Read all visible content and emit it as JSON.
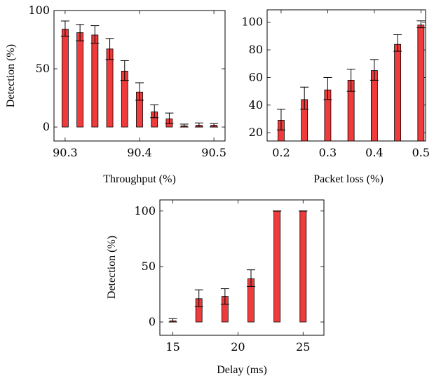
{
  "chart_data": [
    {
      "type": "bar",
      "xlabel": "Throughput (%)",
      "ylabel": "Detection (%)",
      "x": [
        90.3,
        90.32,
        90.34,
        90.36,
        90.38,
        90.4,
        90.42,
        90.44,
        90.46,
        90.48,
        90.5
      ],
      "values": [
        84,
        81,
        79,
        67,
        48,
        30,
        13,
        7,
        1,
        1.5,
        1.5
      ],
      "error_upper": [
        91,
        88,
        87,
        76,
        57,
        38,
        19,
        12,
        2.5,
        3.5,
        3
      ],
      "error_lower": [
        78,
        74,
        72,
        58,
        40,
        23,
        8,
        3,
        0,
        0,
        0
      ],
      "xlim": [
        90.285,
        90.515
      ],
      "ylim": [
        -12,
        100
      ],
      "xticks": [
        "90.3",
        "90.4",
        "90.5"
      ],
      "yticks": [
        "0",
        "50",
        "100"
      ],
      "grid": false,
      "color": "#ef3b3b"
    },
    {
      "type": "bar",
      "xlabel": "Packet loss (%)",
      "ylabel": "",
      "x": [
        0.2,
        0.25,
        0.3,
        0.35,
        0.4,
        0.45,
        0.5
      ],
      "values": [
        29,
        44,
        51,
        58,
        65,
        84,
        98
      ],
      "error_upper": [
        37,
        53,
        60,
        66,
        73,
        91,
        101
      ],
      "error_lower": [
        22,
        37,
        44,
        50,
        58,
        79,
        96
      ],
      "xlim": [
        0.17,
        0.51
      ],
      "ylim": [
        14,
        109
      ],
      "xticks": [
        "0.2",
        "0.3",
        "0.4",
        "0.5"
      ],
      "yticks": [
        "20",
        "40",
        "60",
        "80",
        "100"
      ],
      "grid": false,
      "color": "#ef3b3b"
    },
    {
      "type": "bar",
      "xlabel": "Delay (ms)",
      "ylabel": "Detection (%)",
      "x": [
        15,
        17,
        19,
        21,
        23,
        25
      ],
      "values": [
        1,
        21,
        23,
        39,
        100,
        100
      ],
      "error_upper": [
        3,
        29,
        30,
        47,
        100,
        100
      ],
      "error_lower": [
        0,
        14,
        16,
        32,
        100,
        100
      ],
      "xlim": [
        14.0,
        26.6
      ],
      "ylim": [
        -12,
        110
      ],
      "xticks": [
        "15",
        "20",
        "25"
      ],
      "yticks": [
        "0",
        "50",
        "100"
      ],
      "grid": false,
      "color": "#ef3b3b"
    }
  ]
}
